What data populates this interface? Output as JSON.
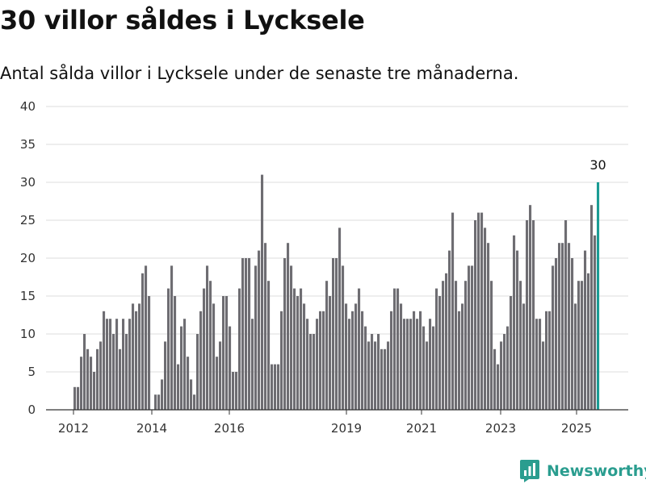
{
  "title": "30 villor såldes i Lycksele",
  "subtitle": "Antal sålda villor i Lycksele under de senaste tre månaderna.",
  "brand": "Newsworthy",
  "colors": {
    "bar": "#6e6d72",
    "highlight": "#1a9c94",
    "grid": "#dddddd",
    "axis": "#333333",
    "brand": "#2a9d8f"
  },
  "chart_data": {
    "type": "bar",
    "title": "",
    "xlabel": "",
    "ylabel": "",
    "ylim": [
      0,
      40
    ],
    "yticks": [
      0,
      5,
      10,
      15,
      20,
      25,
      30,
      35,
      40
    ],
    "xtick_labels": [
      "2012",
      "2014",
      "2016",
      "2019",
      "2021",
      "2023",
      "2025"
    ],
    "grid": true,
    "legend": "none",
    "period": "rolling 3-month total, monthly, 2012-2025",
    "values": [
      3,
      3,
      7,
      10,
      8,
      7,
      5,
      8,
      9,
      13,
      12,
      12,
      10,
      12,
      8,
      12,
      10,
      12,
      14,
      13,
      14,
      18,
      19,
      15,
      0,
      2,
      2,
      4,
      9,
      16,
      19,
      15,
      6,
      11,
      12,
      7,
      4,
      2,
      10,
      13,
      16,
      19,
      17,
      14,
      7,
      9,
      15,
      15,
      11,
      5,
      5,
      16,
      20,
      20,
      20,
      12,
      19,
      21,
      31,
      22,
      17,
      6,
      6,
      6,
      13,
      20,
      22,
      19,
      16,
      15,
      16,
      14,
      12,
      10,
      10,
      12,
      13,
      13,
      17,
      15,
      20,
      20,
      24,
      19,
      14,
      12,
      13,
      14,
      16,
      13,
      11,
      9,
      10,
      9,
      10,
      8,
      8,
      9,
      13,
      16,
      16,
      14,
      12,
      12,
      12,
      13,
      12,
      13,
      11,
      9,
      12,
      11,
      16,
      15,
      17,
      18,
      21,
      26,
      17,
      13,
      14,
      17,
      19,
      19,
      25,
      26,
      26,
      24,
      22,
      17,
      8,
      6,
      9,
      10,
      11,
      15,
      23,
      21,
      17,
      14,
      25,
      27,
      25,
      12,
      12,
      9,
      13,
      13,
      19,
      20,
      22,
      22,
      25,
      22,
      20,
      14,
      17,
      17,
      21,
      18,
      27,
      23,
      30
    ],
    "highlight_index": 162,
    "highlight_label": "30"
  }
}
